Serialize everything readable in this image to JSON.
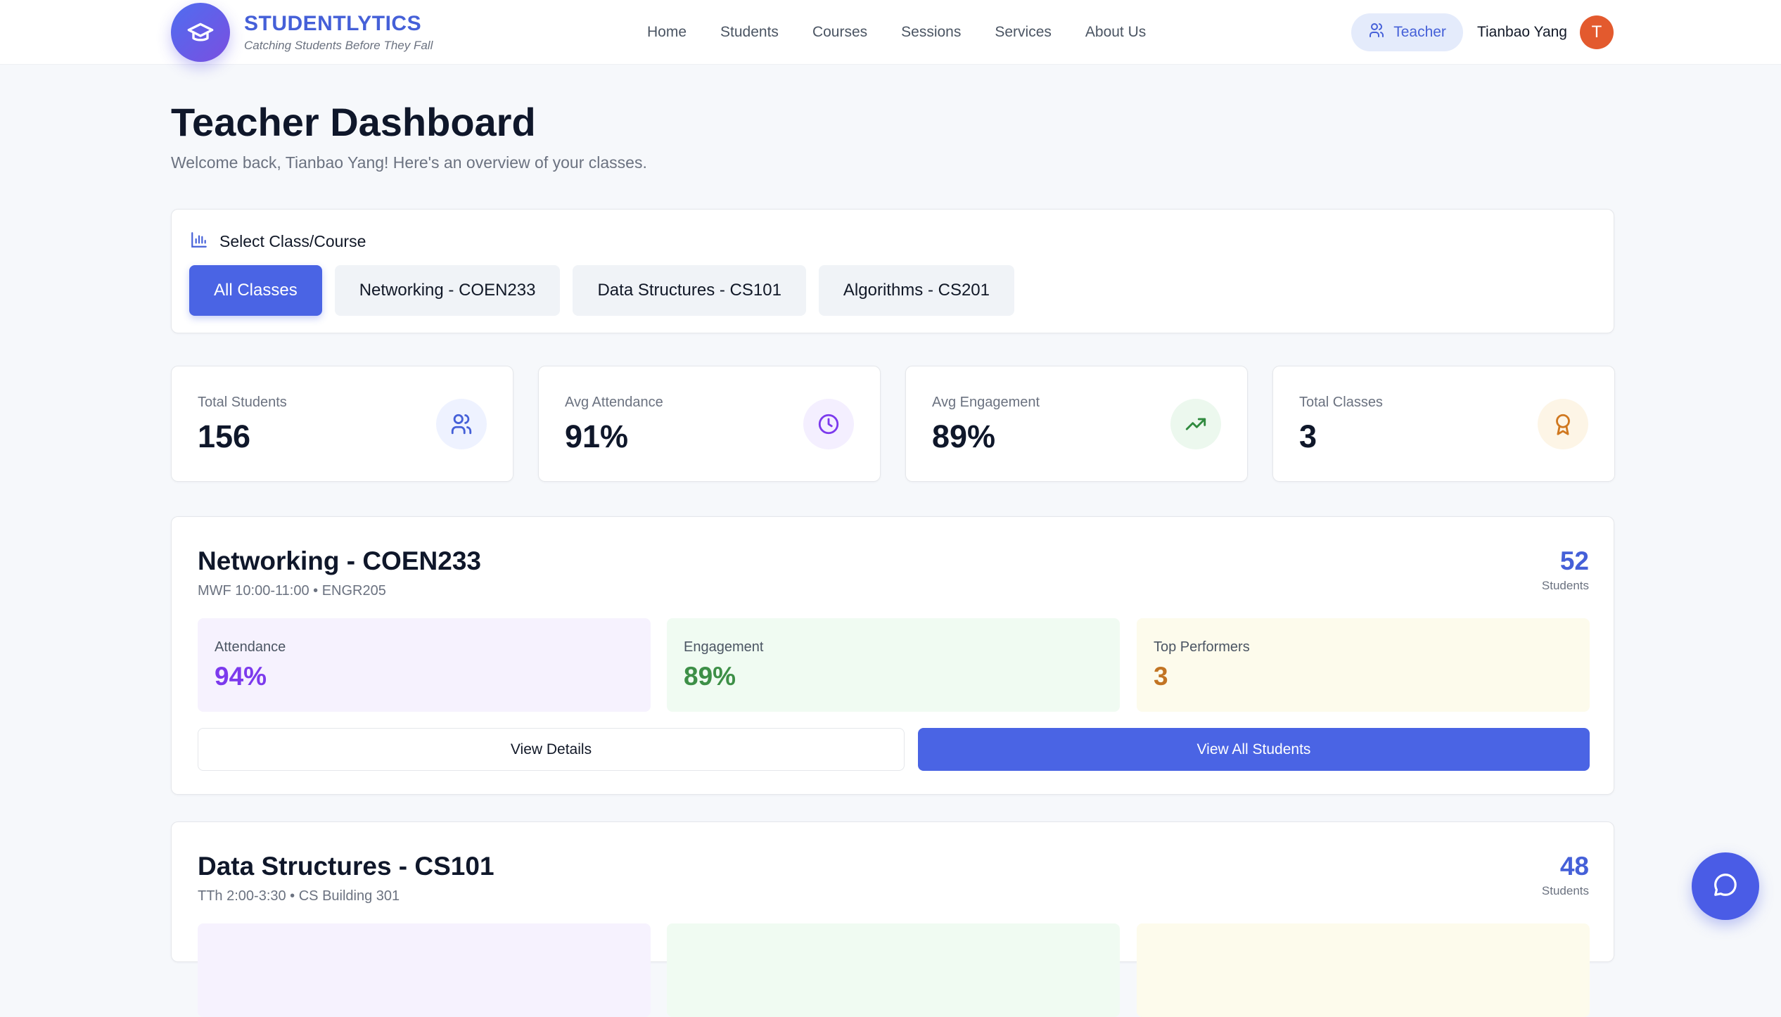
{
  "brand": {
    "name": "STUDENTLYTICS",
    "tagline": "Catching Students Before They Fall"
  },
  "nav": [
    "Home",
    "Students",
    "Courses",
    "Sessions",
    "Services",
    "About Us"
  ],
  "user": {
    "role": "Teacher",
    "name": "Tianbao Yang",
    "initial": "T"
  },
  "page": {
    "title": "Teacher Dashboard",
    "subtitle": "Welcome back, Tianbao Yang! Here's an overview of your classes."
  },
  "selector": {
    "title": "Select Class/Course",
    "tabs": [
      "All Classes",
      "Networking - COEN233",
      "Data Structures - CS101",
      "Algorithms - CS201"
    ],
    "active": "All Classes"
  },
  "stats": [
    {
      "label": "Total Students",
      "value": "156",
      "icon": "users-icon",
      "color": "#4560d8"
    },
    {
      "label": "Avg Attendance",
      "value": "91%",
      "icon": "clock-icon",
      "color": "#7c3aed"
    },
    {
      "label": "Avg Engagement",
      "value": "89%",
      "icon": "trending-up-icon",
      "color": "#2f8a3e"
    },
    {
      "label": "Total Classes",
      "value": "3",
      "icon": "award-icon",
      "color": "#d0781f"
    }
  ],
  "classes": [
    {
      "title": "Networking - COEN233",
      "schedule": "MWF 10:00-11:00 • ENGR205",
      "count": "52",
      "count_label": "Students",
      "metrics": [
        {
          "label": "Attendance",
          "value": "94%"
        },
        {
          "label": "Engagement",
          "value": "89%"
        },
        {
          "label": "Top Performers",
          "value": "3"
        }
      ],
      "details_label": "View Details",
      "students_label": "View All Students"
    },
    {
      "title": "Data Structures - CS101",
      "schedule": "TTh 2:00-3:30 • CS Building 301",
      "count": "48",
      "count_label": "Students"
    }
  ],
  "colors": {
    "accent": "#4a64e4",
    "attendance": "#7c3aed",
    "engagement": "#3d8f47",
    "performers": "#c27423"
  }
}
